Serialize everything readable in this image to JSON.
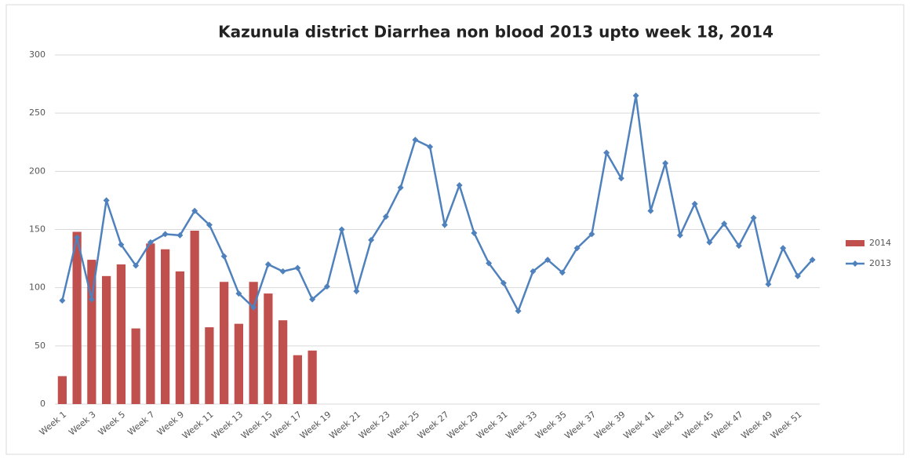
{
  "chart_data": {
    "type": "bar_line",
    "title": "Kazunula district Diarrhea non blood 2013 upto week 18, 2014",
    "categories": [
      "Week 1",
      null,
      "Week 3",
      null,
      "Week 5",
      null,
      "Week 7",
      null,
      "Week 9",
      null,
      "Week 11",
      null,
      "Week 13",
      null,
      "Week 15",
      null,
      "Week 17",
      null,
      "Week 19",
      null,
      "Week 21",
      null,
      "Week 23",
      null,
      "Week 25",
      null,
      "Week 27",
      null,
      "Week 29",
      null,
      "Week 31",
      null,
      "Week 33",
      null,
      "Week 35",
      null,
      "Week 37",
      null,
      "Week 39",
      null,
      "Week 41",
      null,
      "Week 43",
      null,
      "Week 45",
      null,
      "Week 47",
      null,
      "Week 49",
      null,
      "Week 51",
      null
    ],
    "series": [
      {
        "name": "2014",
        "kind": "bar",
        "color": "#c0504d",
        "values": [
          24,
          148,
          124,
          110,
          120,
          65,
          138,
          133,
          114,
          149,
          66,
          105,
          69,
          105,
          95,
          72,
          42,
          46,
          null,
          null,
          null,
          null,
          null,
          null,
          null,
          null,
          null,
          null,
          null,
          null,
          null,
          null,
          null,
          null,
          null,
          null,
          null,
          null,
          null,
          null,
          null,
          null,
          null,
          null,
          null,
          null,
          null,
          null,
          null,
          null,
          null,
          null
        ]
      },
      {
        "name": "2013",
        "kind": "line",
        "color": "#4f81bd",
        "values": [
          89,
          143,
          90,
          175,
          137,
          119,
          139,
          146,
          145,
          166,
          154,
          127,
          95,
          83,
          120,
          114,
          117,
          90,
          101,
          150,
          97,
          141,
          161,
          186,
          227,
          221,
          154,
          188,
          147,
          121,
          104,
          80,
          114,
          124,
          113,
          134,
          146,
          216,
          194,
          265,
          166,
          207,
          145,
          172,
          139,
          155,
          136,
          160,
          103,
          134,
          110,
          124
        ]
      }
    ],
    "ylim": [
      0,
      300
    ],
    "yticks": [
      0,
      50,
      100,
      150,
      200,
      250,
      300
    ],
    "grid": true,
    "legend": "right"
  }
}
